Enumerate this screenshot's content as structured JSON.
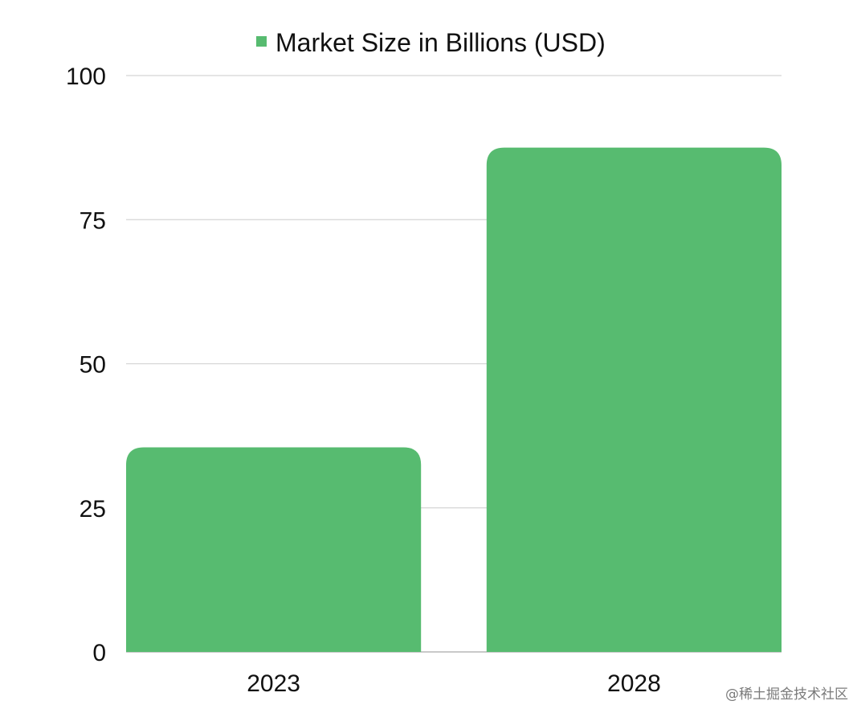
{
  "chart_data": {
    "type": "bar",
    "categories": [
      "2023",
      "2028"
    ],
    "series": [
      {
        "name": "Market Size in Billions (USD)",
        "values": [
          35.5,
          87.5
        ],
        "color": "#57bb70"
      }
    ],
    "ylim": [
      0,
      100
    ],
    "yticks": [
      0,
      25,
      50,
      75,
      100
    ],
    "grid": true,
    "legend_position": "top-center",
    "title": "",
    "xlabel": "",
    "ylabel": ""
  },
  "watermark": "@稀土掘金技术社区"
}
